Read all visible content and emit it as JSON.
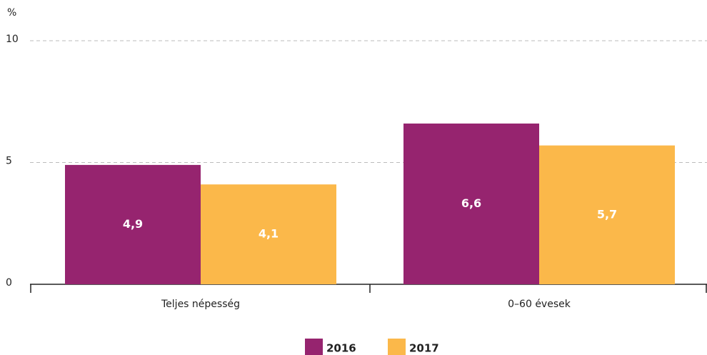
{
  "chart_data": {
    "type": "bar",
    "y_label": "%",
    "categories": [
      "Teljes népesség",
      "0–60 évesek"
    ],
    "series": [
      {
        "name": "2016",
        "color": "#96246f",
        "values": [
          4.9,
          6.6
        ],
        "value_labels": [
          "4,9",
          "6,6"
        ]
      },
      {
        "name": "2017",
        "color": "#fbb84a",
        "values": [
          4.1,
          5.7
        ],
        "value_labels": [
          "4,1",
          "5,7"
        ]
      }
    ],
    "ylim": [
      0,
      10
    ],
    "yticks": [
      0,
      5,
      10
    ],
    "grid": true
  }
}
